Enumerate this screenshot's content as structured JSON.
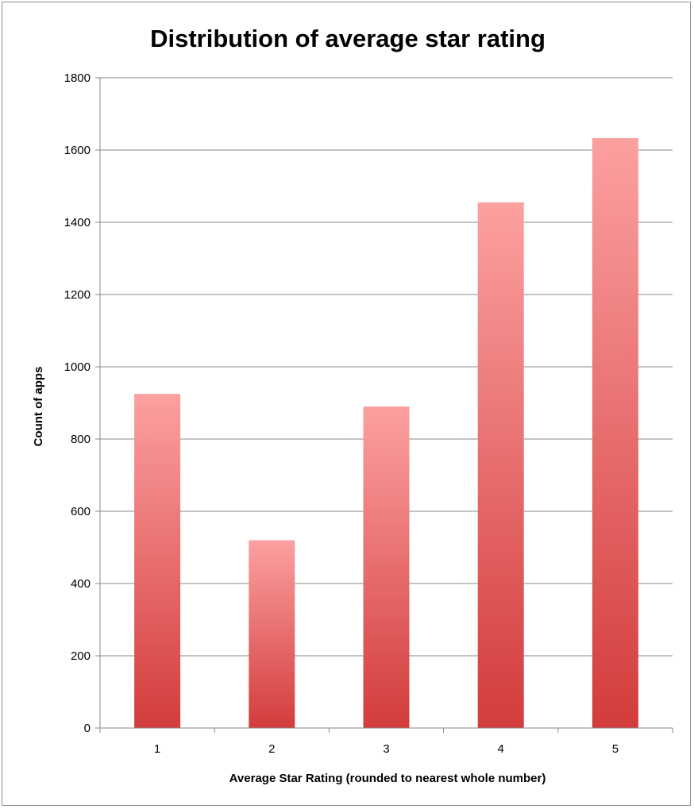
{
  "chart_data": {
    "type": "bar",
    "title": "Distribution of average star rating",
    "xlabel": "Average Star Rating (rounded to nearest whole number)",
    "ylabel": "Count of apps",
    "categories": [
      "1",
      "2",
      "3",
      "4",
      "5"
    ],
    "values": [
      925,
      520,
      890,
      1455,
      1633
    ],
    "ylim": [
      0,
      1800
    ],
    "yticks": [
      "0",
      "200",
      "400",
      "600",
      "800",
      "1000",
      "1200",
      "1400",
      "1600",
      "1800"
    ],
    "grid": true,
    "legend": "none",
    "colors": {
      "bar_top": "#fca0a0",
      "bar_bottom": "#d33c3c",
      "grid": "#8a8a8a",
      "axis": "#8a8a8a",
      "text": "#000000"
    }
  }
}
